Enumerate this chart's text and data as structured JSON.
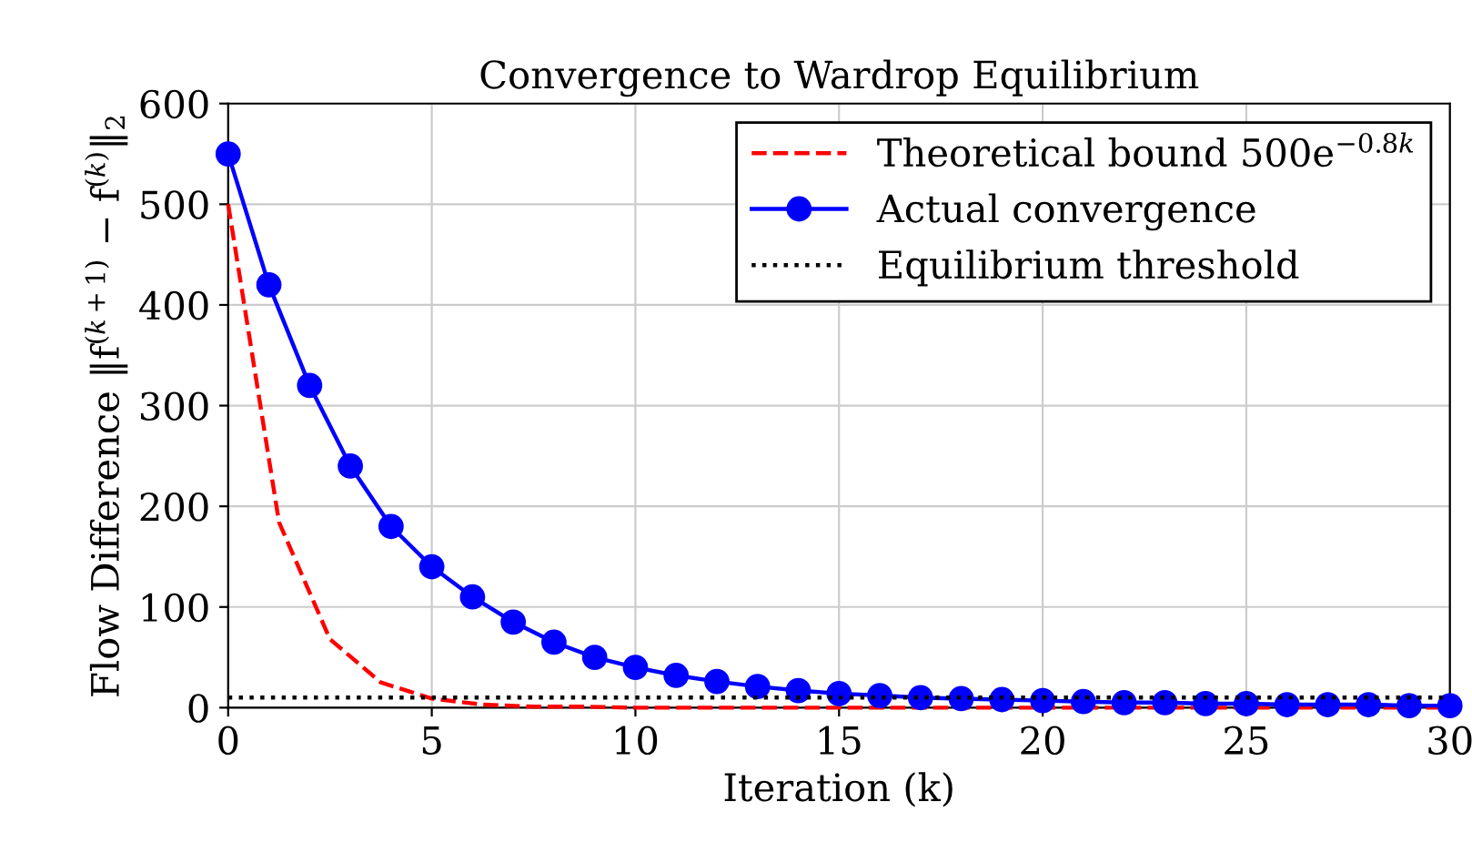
{
  "chart_data": {
    "type": "line",
    "title": "Convergence to Wardrop Equilibrium",
    "xlabel": "Iteration (k)",
    "ylabel": "Flow Difference ‖f$^{(k+1)}$ − f$^{(k)}$‖$_{2}$",
    "xlim": [
      0,
      30
    ],
    "ylim": [
      0,
      600
    ],
    "xticks": [
      0,
      5,
      10,
      15,
      20,
      25,
      30
    ],
    "yticks": [
      0,
      100,
      200,
      300,
      400,
      500,
      600
    ],
    "grid": true,
    "legend": "top right",
    "series": [
      {
        "name": "Theoretical bound 500e$^{−0.8k}$",
        "color": "#ff0000",
        "line_style": "dashed",
        "marker": "none",
        "x": [
          0,
          1.25,
          2.5,
          3.75,
          5,
          6.25,
          7.5,
          8.75,
          10,
          11.25,
          12.5,
          13.75,
          15,
          16.25,
          17.5,
          18.75,
          20,
          21.25,
          22.5,
          23.75,
          25,
          26.25,
          27.5,
          28.75,
          30
        ],
        "values": [
          500,
          184,
          68,
          25,
          9,
          3,
          1,
          1,
          0,
          0,
          0,
          0,
          0,
          0,
          0,
          0,
          0,
          0,
          0,
          0,
          0,
          0,
          0,
          0,
          0
        ]
      },
      {
        "name": "Actual convergence",
        "color": "#0000ff",
        "line_style": "solid",
        "marker": "circle",
        "x": [
          0,
          1,
          2,
          3,
          4,
          5,
          6,
          7,
          8,
          9,
          10,
          11,
          12,
          13,
          14,
          15,
          16,
          17,
          18,
          19,
          20,
          21,
          22,
          23,
          24,
          25,
          26,
          27,
          28,
          29,
          30
        ],
        "values": [
          550,
          420,
          320,
          240,
          180,
          140,
          110,
          85,
          65,
          50,
          40,
          32,
          26,
          21,
          17,
          14,
          12,
          10,
          9,
          8,
          7,
          6,
          5,
          5,
          4,
          4,
          3,
          3,
          3,
          2,
          2
        ]
      },
      {
        "name": "Equilibrium threshold",
        "color": "#000000",
        "line_style": "dotted",
        "marker": "none",
        "x": [
          0,
          30
        ],
        "values": [
          10,
          10
        ]
      }
    ]
  }
}
